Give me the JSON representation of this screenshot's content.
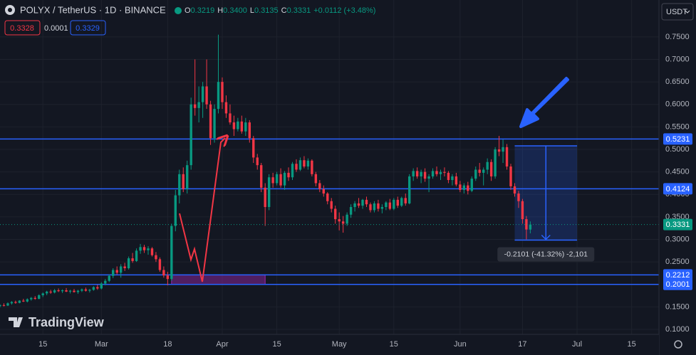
{
  "header": {
    "symbol": "POLYX / TetherUS · 1D · BINANCE",
    "ohlc": [
      {
        "key": "O",
        "value": "0.3219"
      },
      {
        "key": "H",
        "value": "0.3400"
      },
      {
        "key": "L",
        "value": "0.3135"
      },
      {
        "key": "C",
        "value": "0.3331"
      }
    ],
    "change": "+0.0112 (+3.48%)",
    "bid": "0.3328",
    "spread": "0.0001",
    "ask": "0.3329",
    "currency": "USDT",
    "watermark": "TradingView"
  },
  "chart_data": {
    "type": "candlestick",
    "up_color": "#089981",
    "down_color": "#f23645",
    "grid": true,
    "xlim": [
      0,
      169
    ],
    "ylim": [
      0.089,
      0.832
    ],
    "xticks": [
      {
        "value": 11,
        "label": "15"
      },
      {
        "value": 26,
        "label": "Mar"
      },
      {
        "value": 43,
        "label": "18"
      },
      {
        "value": 57,
        "label": "Apr"
      },
      {
        "value": 71,
        "label": "15"
      },
      {
        "value": 87,
        "label": "May"
      },
      {
        "value": 101,
        "label": "15"
      },
      {
        "value": 118,
        "label": "Jun"
      },
      {
        "value": 134,
        "label": "17"
      },
      {
        "value": 148,
        "label": "Jul"
      },
      {
        "value": 162,
        "label": "15"
      }
    ],
    "yticks": [
      {
        "value": 0.1,
        "label": "0.1000"
      },
      {
        "value": 0.15,
        "label": "0.1500"
      },
      {
        "value": 0.2,
        "label": "0.2000"
      },
      {
        "value": 0.25,
        "label": "0.2500"
      },
      {
        "value": 0.3,
        "label": "0.3000"
      },
      {
        "value": 0.35,
        "label": "0.3500"
      },
      {
        "value": 0.4,
        "label": "0.4000"
      },
      {
        "value": 0.45,
        "label": "0.4500"
      },
      {
        "value": 0.5,
        "label": "0.5000"
      },
      {
        "value": 0.55,
        "label": "0.5500"
      },
      {
        "value": 0.6,
        "label": "0.6000"
      },
      {
        "value": 0.65,
        "label": "0.6500"
      },
      {
        "value": 0.7,
        "label": "0.7000"
      },
      {
        "value": 0.75,
        "label": "0.7500"
      }
    ],
    "levels": [
      0.5231,
      0.4124,
      0.2212,
      0.2001
    ],
    "level_color": "#2962ff",
    "zone": {
      "x": [
        44,
        68
      ],
      "top": 0.2212,
      "bottom": 0.2001,
      "color": "#9c27b0"
    },
    "measure": {
      "x": [
        132,
        148
      ],
      "top": 0.508,
      "bottom": 0.2985,
      "label": "-0.2101 (-41.32%) -2,101"
    },
    "candles": [
      [
        0.152,
        0.156,
        0.149,
        0.154
      ],
      [
        0.154,
        0.158,
        0.151,
        0.153
      ],
      [
        0.153,
        0.16,
        0.152,
        0.158
      ],
      [
        0.158,
        0.163,
        0.155,
        0.161
      ],
      [
        0.161,
        0.164,
        0.157,
        0.159
      ],
      [
        0.159,
        0.165,
        0.158,
        0.164
      ],
      [
        0.164,
        0.168,
        0.161,
        0.162
      ],
      [
        0.162,
        0.169,
        0.16,
        0.167
      ],
      [
        0.167,
        0.172,
        0.164,
        0.17
      ],
      [
        0.17,
        0.174,
        0.166,
        0.168
      ],
      [
        0.168,
        0.178,
        0.167,
        0.176
      ],
      [
        0.176,
        0.182,
        0.172,
        0.18
      ],
      [
        0.18,
        0.186,
        0.176,
        0.184
      ],
      [
        0.184,
        0.188,
        0.179,
        0.182
      ],
      [
        0.182,
        0.19,
        0.18,
        0.187
      ],
      [
        0.187,
        0.191,
        0.183,
        0.185
      ],
      [
        0.185,
        0.189,
        0.181,
        0.187
      ],
      [
        0.187,
        0.192,
        0.183,
        0.184
      ],
      [
        0.184,
        0.188,
        0.18,
        0.186
      ],
      [
        0.186,
        0.19,
        0.182,
        0.183
      ],
      [
        0.183,
        0.188,
        0.179,
        0.186
      ],
      [
        0.186,
        0.191,
        0.183,
        0.189
      ],
      [
        0.189,
        0.193,
        0.184,
        0.186
      ],
      [
        0.186,
        0.19,
        0.182,
        0.188
      ],
      [
        0.188,
        0.196,
        0.186,
        0.194
      ],
      [
        0.194,
        0.199,
        0.188,
        0.191
      ],
      [
        0.191,
        0.205,
        0.189,
        0.202
      ],
      [
        0.202,
        0.212,
        0.198,
        0.208
      ],
      [
        0.208,
        0.222,
        0.205,
        0.219
      ],
      [
        0.219,
        0.236,
        0.214,
        0.232
      ],
      [
        0.232,
        0.24,
        0.222,
        0.226
      ],
      [
        0.226,
        0.245,
        0.215,
        0.24
      ],
      [
        0.24,
        0.248,
        0.23,
        0.236
      ],
      [
        0.236,
        0.262,
        0.233,
        0.258
      ],
      [
        0.258,
        0.27,
        0.248,
        0.252
      ],
      [
        0.252,
        0.28,
        0.25,
        0.275
      ],
      [
        0.275,
        0.29,
        0.268,
        0.283
      ],
      [
        0.283,
        0.288,
        0.27,
        0.276
      ],
      [
        0.276,
        0.285,
        0.266,
        0.28
      ],
      [
        0.28,
        0.283,
        0.262,
        0.265
      ],
      [
        0.265,
        0.272,
        0.25,
        0.256
      ],
      [
        0.256,
        0.26,
        0.228,
        0.232
      ],
      [
        0.232,
        0.24,
        0.215,
        0.22
      ],
      [
        0.22,
        0.228,
        0.198,
        0.212
      ],
      [
        0.212,
        0.335,
        0.208,
        0.33
      ],
      [
        0.33,
        0.41,
        0.318,
        0.398
      ],
      [
        0.398,
        0.455,
        0.38,
        0.445
      ],
      [
        0.445,
        0.46,
        0.405,
        0.412
      ],
      [
        0.412,
        0.475,
        0.402,
        0.465
      ],
      [
        0.465,
        0.615,
        0.455,
        0.6
      ],
      [
        0.6,
        0.7,
        0.575,
        0.592
      ],
      [
        0.592,
        0.64,
        0.56,
        0.605
      ],
      [
        0.605,
        0.65,
        0.57,
        0.64
      ],
      [
        0.64,
        0.7,
        0.59,
        0.6
      ],
      [
        0.6,
        0.608,
        0.51,
        0.525
      ],
      [
        0.525,
        0.6,
        0.515,
        0.59
      ],
      [
        0.59,
        0.755,
        0.58,
        0.65
      ],
      [
        0.65,
        0.66,
        0.59,
        0.605
      ],
      [
        0.605,
        0.62,
        0.57,
        0.58
      ],
      [
        0.58,
        0.6,
        0.555,
        0.56
      ],
      [
        0.56,
        0.575,
        0.53,
        0.545
      ],
      [
        0.545,
        0.57,
        0.54,
        0.562
      ],
      [
        0.562,
        0.575,
        0.535,
        0.54
      ],
      [
        0.54,
        0.57,
        0.53,
        0.56
      ],
      [
        0.56,
        0.565,
        0.515,
        0.525
      ],
      [
        0.525,
        0.53,
        0.47,
        0.482
      ],
      [
        0.482,
        0.49,
        0.455,
        0.465
      ],
      [
        0.465,
        0.47,
        0.405,
        0.415
      ],
      [
        0.415,
        0.425,
        0.33,
        0.372
      ],
      [
        0.372,
        0.445,
        0.365,
        0.438
      ],
      [
        0.438,
        0.448,
        0.415,
        0.425
      ],
      [
        0.425,
        0.45,
        0.42,
        0.445
      ],
      [
        0.445,
        0.458,
        0.415,
        0.42
      ],
      [
        0.42,
        0.452,
        0.41,
        0.448
      ],
      [
        0.448,
        0.46,
        0.43,
        0.438
      ],
      [
        0.438,
        0.472,
        0.432,
        0.468
      ],
      [
        0.468,
        0.478,
        0.45,
        0.455
      ],
      [
        0.455,
        0.482,
        0.452,
        0.476
      ],
      [
        0.476,
        0.485,
        0.458,
        0.462
      ],
      [
        0.462,
        0.48,
        0.455,
        0.475
      ],
      [
        0.475,
        0.478,
        0.44,
        0.445
      ],
      [
        0.445,
        0.45,
        0.418,
        0.425
      ],
      [
        0.425,
        0.432,
        0.405,
        0.412
      ],
      [
        0.412,
        0.42,
        0.395,
        0.402
      ],
      [
        0.402,
        0.405,
        0.378,
        0.385
      ],
      [
        0.385,
        0.392,
        0.36,
        0.368
      ],
      [
        0.368,
        0.375,
        0.335,
        0.345
      ],
      [
        0.345,
        0.36,
        0.32,
        0.34
      ],
      [
        0.34,
        0.352,
        0.315,
        0.335
      ],
      [
        0.335,
        0.36,
        0.33,
        0.355
      ],
      [
        0.355,
        0.378,
        0.348,
        0.372
      ],
      [
        0.372,
        0.385,
        0.362,
        0.38
      ],
      [
        0.38,
        0.392,
        0.37,
        0.375
      ],
      [
        0.375,
        0.39,
        0.368,
        0.388
      ],
      [
        0.388,
        0.395,
        0.372,
        0.378
      ],
      [
        0.378,
        0.382,
        0.36,
        0.365
      ],
      [
        0.365,
        0.385,
        0.36,
        0.38
      ],
      [
        0.38,
        0.388,
        0.362,
        0.368
      ],
      [
        0.368,
        0.378,
        0.358,
        0.372
      ],
      [
        0.372,
        0.385,
        0.365,
        0.382
      ],
      [
        0.382,
        0.39,
        0.365,
        0.368
      ],
      [
        0.368,
        0.392,
        0.365,
        0.388
      ],
      [
        0.388,
        0.395,
        0.37,
        0.375
      ],
      [
        0.375,
        0.395,
        0.372,
        0.392
      ],
      [
        0.392,
        0.402,
        0.375,
        0.38
      ],
      [
        0.38,
        0.445,
        0.378,
        0.44
      ],
      [
        0.44,
        0.458,
        0.43,
        0.452
      ],
      [
        0.452,
        0.46,
        0.435,
        0.44
      ],
      [
        0.44,
        0.455,
        0.425,
        0.45
      ],
      [
        0.45,
        0.458,
        0.428,
        0.435
      ],
      [
        0.435,
        0.445,
        0.405,
        0.44
      ],
      [
        0.44,
        0.458,
        0.435,
        0.452
      ],
      [
        0.452,
        0.462,
        0.44,
        0.445
      ],
      [
        0.445,
        0.455,
        0.432,
        0.45
      ],
      [
        0.45,
        0.46,
        0.44,
        0.448
      ],
      [
        0.448,
        0.452,
        0.425,
        0.432
      ],
      [
        0.432,
        0.445,
        0.42,
        0.44
      ],
      [
        0.44,
        0.448,
        0.418,
        0.422
      ],
      [
        0.422,
        0.43,
        0.405,
        0.41
      ],
      [
        0.41,
        0.425,
        0.402,
        0.42
      ],
      [
        0.42,
        0.428,
        0.4,
        0.408
      ],
      [
        0.408,
        0.44,
        0.405,
        0.435
      ],
      [
        0.435,
        0.462,
        0.43,
        0.455
      ],
      [
        0.455,
        0.47,
        0.44,
        0.448
      ],
      [
        0.448,
        0.46,
        0.42,
        0.455
      ],
      [
        0.455,
        0.48,
        0.445,
        0.472
      ],
      [
        0.472,
        0.478,
        0.43,
        0.44
      ],
      [
        0.44,
        0.505,
        0.435,
        0.5
      ],
      [
        0.5,
        0.53,
        0.485,
        0.495
      ],
      [
        0.495,
        0.522,
        0.47,
        0.505
      ],
      [
        0.505,
        0.512,
        0.455,
        0.462
      ],
      [
        0.462,
        0.468,
        0.41,
        0.418
      ],
      [
        0.418,
        0.425,
        0.395,
        0.402
      ],
      [
        0.402,
        0.408,
        0.37,
        0.385
      ],
      [
        0.385,
        0.39,
        0.335,
        0.345
      ],
      [
        0.345,
        0.352,
        0.3,
        0.322
      ],
      [
        0.3219,
        0.34,
        0.3135,
        0.3331
      ]
    ]
  }
}
